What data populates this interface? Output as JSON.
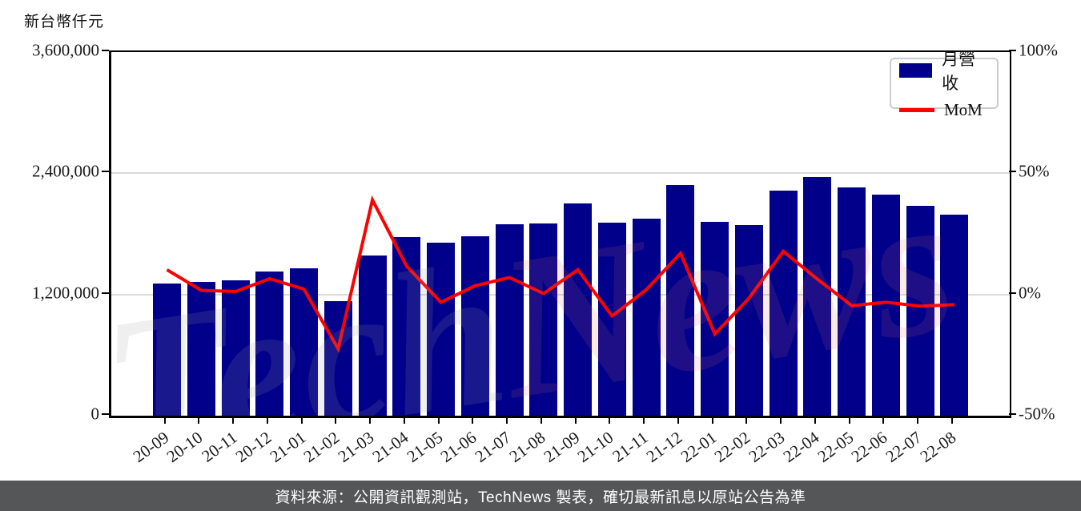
{
  "header": {
    "unit_label": "新台幣仟元"
  },
  "legend": {
    "bar_label": "月營收",
    "line_label": "MoM"
  },
  "watermark": {
    "part1": "Tech",
    "part2": "News"
  },
  "footer": {
    "caption": "資料來源：公開資訊觀測站，TechNews 製表，確切最新訊息以原站公告為準"
  },
  "colors": {
    "bar": "#00008B",
    "line": "#FF0000",
    "grid": "#D9D9D9",
    "axis": "#000000",
    "caption_bg": "#555658",
    "watermark_gray": "#9A9A9A",
    "watermark_red": "#D96A6A"
  },
  "chart_data": {
    "type": "bar",
    "title": "",
    "categories": [
      "20-09",
      "20-10",
      "20-11",
      "20-12",
      "21-01",
      "21-02",
      "21-03",
      "21-04",
      "21-05",
      "21-06",
      "21-07",
      "21-08",
      "21-09",
      "21-10",
      "21-11",
      "21-12",
      "22-01",
      "22-02",
      "22-03",
      "22-04",
      "22-05",
      "22-06",
      "22-07",
      "22-08"
    ],
    "series": [
      {
        "name": "月營收",
        "type": "bar",
        "axis": "left",
        "unit": "新台幣仟元",
        "values": [
          1305000,
          1327000,
          1343000,
          1430000,
          1462000,
          1134000,
          1584000,
          1770000,
          1714000,
          1775000,
          1899000,
          1907000,
          2101000,
          1913000,
          1952000,
          2283000,
          1918000,
          1889000,
          2225000,
          2366000,
          2257000,
          2185000,
          2080000,
          1992000
        ]
      },
      {
        "name": "MoM",
        "type": "line",
        "axis": "right",
        "unit": "%",
        "values": [
          10.2,
          1.7,
          1.2,
          6.5,
          2.2,
          -22.4,
          39.0,
          11.7,
          -3.2,
          3.6,
          7.0,
          0.4,
          10.2,
          -8.9,
          2.0,
          17.0,
          -16.3,
          -1.5,
          17.8,
          6.3,
          -4.6,
          -3.2,
          -4.8,
          -4.2
        ]
      }
    ],
    "left_axis": {
      "label": "新台幣仟元",
      "range": [
        0,
        3600000
      ],
      "ticks": [
        0,
        1200000,
        2400000,
        3600000
      ],
      "tick_labels": [
        "0",
        "1,200,000",
        "2,400,000",
        "3,600,000"
      ]
    },
    "right_axis": {
      "label": "",
      "range": [
        -50,
        100
      ],
      "ticks": [
        -50,
        0,
        50,
        100
      ],
      "tick_labels": [
        "-50%",
        "0%",
        "50%",
        "100%"
      ]
    },
    "grid": "horizontal",
    "legend_position": "top-right"
  }
}
